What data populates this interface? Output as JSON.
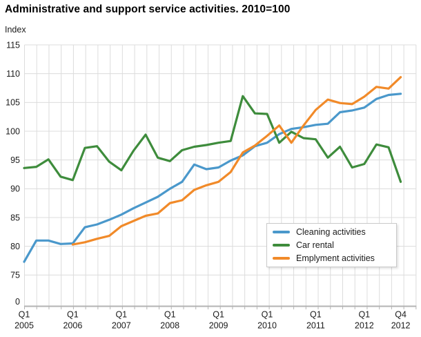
{
  "chart_data": {
    "type": "line",
    "title": "Administrative and support service activities. 2010=100",
    "ylabel": "Index",
    "ylim": [
      75,
      115
    ],
    "y_axis_break_label": "0",
    "y_ticks": [
      115,
      110,
      105,
      100,
      95,
      90,
      85,
      80,
      75
    ],
    "grid": true,
    "legend_position": "inside-bottom-right",
    "categories": [
      "2005 Q1",
      "2005 Q2",
      "2005 Q3",
      "2005 Q4",
      "2006 Q1",
      "2006 Q2",
      "2006 Q3",
      "2006 Q4",
      "2007 Q1",
      "2007 Q2",
      "2007 Q3",
      "2007 Q4",
      "2008 Q1",
      "2008 Q2",
      "2008 Q3",
      "2008 Q4",
      "2009 Q1",
      "2009 Q2",
      "2009 Q3",
      "2009 Q4",
      "2010 Q1",
      "2010 Q2",
      "2010 Q3",
      "2010 Q4",
      "2011 Q1",
      "2011 Q2",
      "2011 Q3",
      "2011 Q4",
      "2012 Q1",
      "2012 Q2",
      "2012 Q3",
      "2012 Q4"
    ],
    "x_tick_labels": [
      {
        "index": 0,
        "quarter": "Q1",
        "year": "2005"
      },
      {
        "index": 4,
        "quarter": "Q1",
        "year": "2006"
      },
      {
        "index": 8,
        "quarter": "Q1",
        "year": "2007"
      },
      {
        "index": 12,
        "quarter": "Q1",
        "year": "2008"
      },
      {
        "index": 16,
        "quarter": "Q1",
        "year": "2009"
      },
      {
        "index": 20,
        "quarter": "Q1",
        "year": "2010"
      },
      {
        "index": 24,
        "quarter": "Q1",
        "year": "2011"
      },
      {
        "index": 28,
        "quarter": "Q1",
        "year": "2012"
      },
      {
        "index": 31,
        "quarter": "Q4",
        "year": "2012"
      }
    ],
    "series": [
      {
        "name": "Cleaning activities",
        "color": "#4a98cb",
        "values": [
          77.3,
          81.0,
          81.0,
          80.4,
          80.5,
          83.3,
          83.8,
          84.6,
          85.5,
          86.6,
          87.6,
          88.6,
          90.0,
          91.2,
          94.2,
          93.4,
          93.7,
          94.9,
          95.8,
          97.4,
          98.0,
          99.5,
          100.4,
          100.7,
          101.1,
          101.3,
          103.3,
          103.6,
          104.1,
          105.6,
          106.3,
          106.5
        ]
      },
      {
        "name": "Car rental",
        "color": "#3e8c3c",
        "values": [
          93.6,
          93.8,
          95.1,
          92.1,
          91.5,
          97.1,
          97.4,
          94.7,
          93.2,
          96.6,
          99.4,
          95.4,
          94.8,
          96.7,
          97.3,
          97.6,
          98.0,
          98.3,
          106.1,
          103.1,
          103.0,
          98.0,
          99.9,
          98.8,
          98.6,
          95.4,
          97.3,
          93.7,
          94.3,
          97.7,
          97.2,
          91.2
        ]
      },
      {
        "name": "Emplyment activities",
        "color": "#f18a29",
        "values": [
          null,
          null,
          null,
          null,
          80.3,
          80.7,
          81.3,
          81.8,
          83.5,
          84.4,
          85.3,
          85.7,
          87.5,
          88.0,
          89.8,
          90.6,
          91.2,
          92.9,
          96.3,
          97.5,
          99.2,
          101.0,
          98.0,
          101.0,
          103.7,
          105.5,
          104.9,
          104.7,
          106.0,
          107.7,
          107.4,
          109.4
        ]
      }
    ],
    "colors": {
      "gridline": "#dcdcdc",
      "axis": "#b3b3b3",
      "text": "#1a1a1a"
    }
  }
}
